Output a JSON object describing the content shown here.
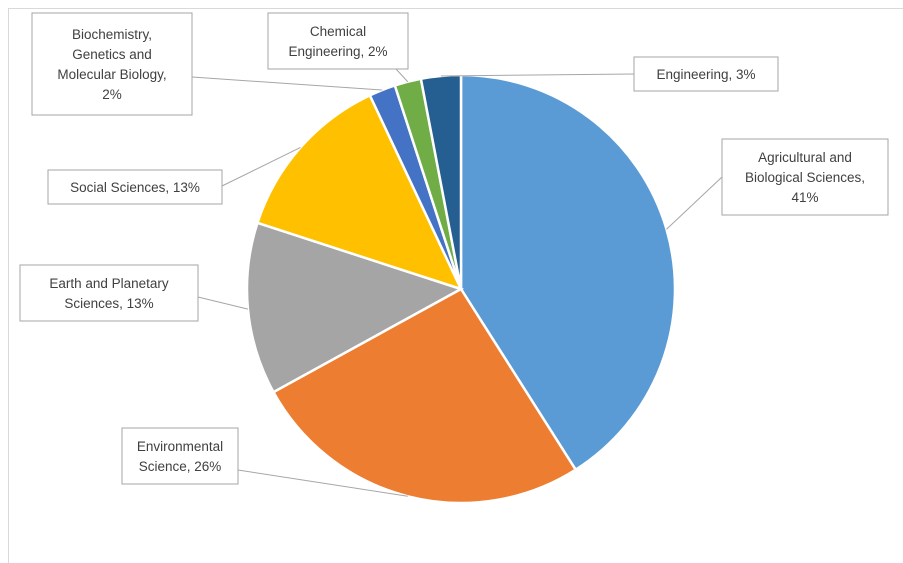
{
  "chart_data": {
    "type": "pie",
    "title": "",
    "categories": [
      "Agricultural and Biological Sciences",
      "Environmental Science",
      "Earth and Planetary Sciences",
      "Social Sciences",
      "Biochemistry, Genetics and Molecular Biology",
      "Chemical Engineering",
      "Engineering"
    ],
    "values": [
      41,
      26,
      13,
      13,
      2,
      2,
      3
    ],
    "percent_labels": [
      "41%",
      "26%",
      "13%",
      "13%",
      "2%",
      "2%",
      "3%"
    ],
    "colors": [
      "#5B9BD5",
      "#ED7D31",
      "#A5A5A5",
      "#FFC000",
      "#4472C4",
      "#70AD47",
      "#255E91"
    ],
    "labels": [
      [
        "Agricultural and",
        "Biological Sciences,",
        "41%"
      ],
      [
        "Environmental",
        "Science, 26%"
      ],
      [
        "Earth and Planetary",
        "Sciences, 13%"
      ],
      [
        "Social Sciences, 13%"
      ],
      [
        "Biochemistry,",
        "Genetics and",
        "Molecular Biology,",
        "2%"
      ],
      [
        "Chemical",
        "Engineering, 2%"
      ],
      [
        "Engineering, 3%"
      ]
    ],
    "legend": "none",
    "data_labels": "outside with leader lines"
  }
}
